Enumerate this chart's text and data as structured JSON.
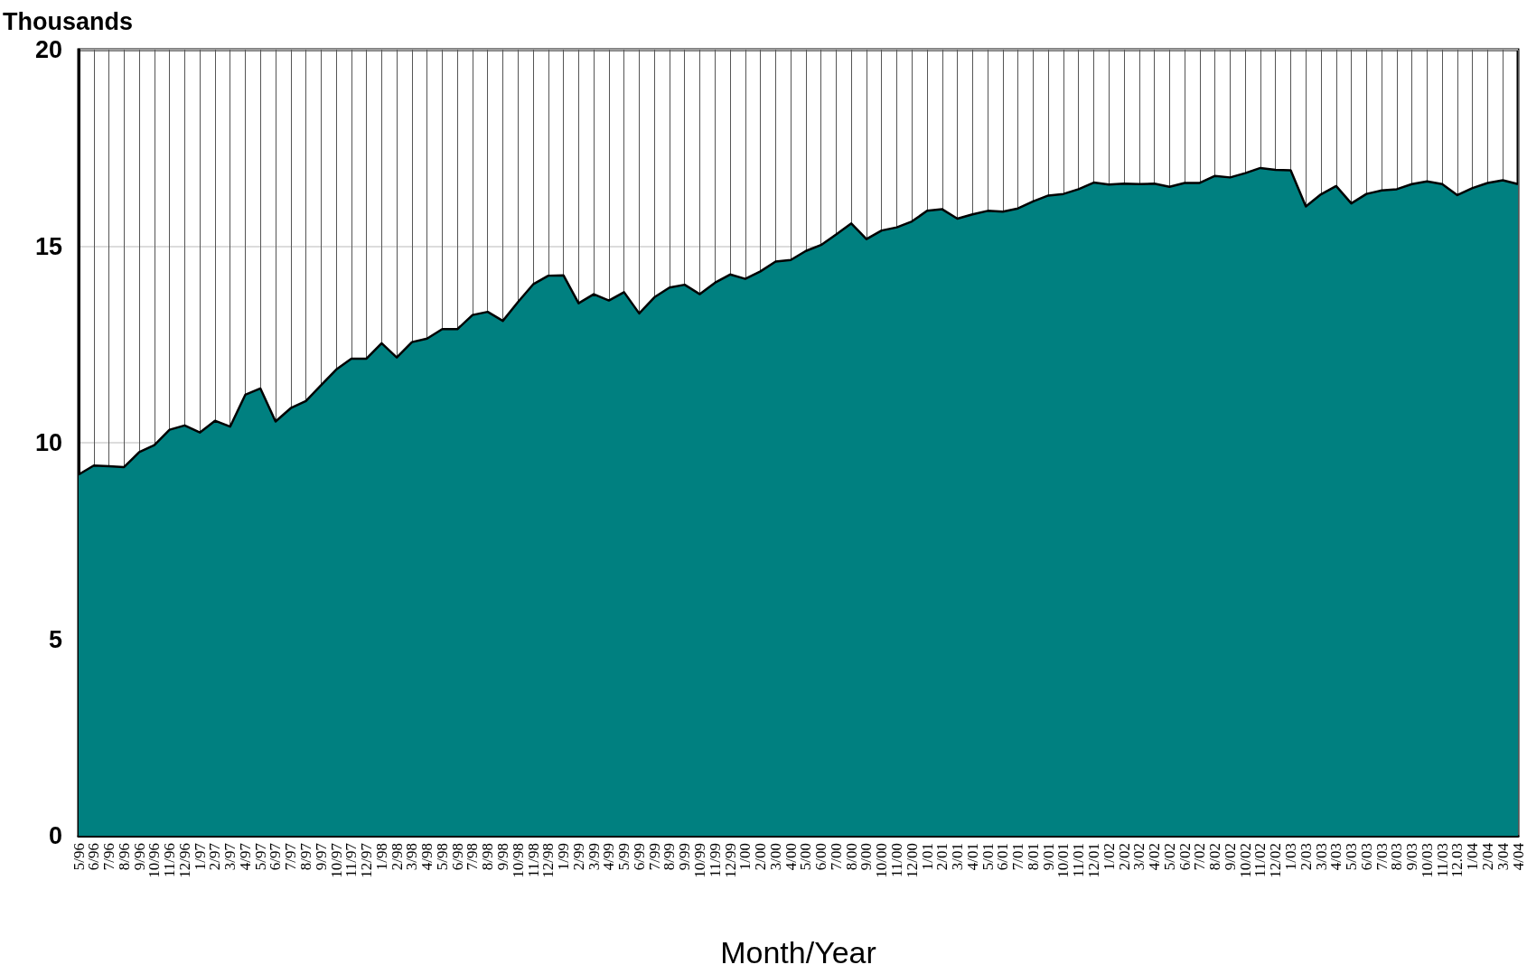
{
  "chart_data": {
    "type": "area",
    "ylabel": "Thousands",
    "xlabel": "Month/Year",
    "categories": [
      "5/96",
      "6/96",
      "7/96",
      "8/96",
      "9/96",
      "10/96",
      "11/96",
      "12/96",
      "1/97",
      "2/97",
      "3/97",
      "4/97",
      "5/97",
      "6/97",
      "7/97",
      "8/97",
      "9/97",
      "10/97",
      "11/97",
      "12/97",
      "1/98",
      "2/98",
      "3/98",
      "4/98",
      "5/98",
      "6/98",
      "7/98",
      "8/98",
      "9/98",
      "10/98",
      "11/98",
      "12/98",
      "1/99",
      "2/99",
      "3/99",
      "4/99",
      "5/99",
      "6/99",
      "7/99",
      "8/99",
      "9/99",
      "10/99",
      "11/99",
      "12/99",
      "1/00",
      "2/00",
      "3/00",
      "4/00",
      "5/00",
      "6/00",
      "7/00",
      "8/00",
      "9/00",
      "10/00",
      "11/00",
      "12/00",
      "1/01",
      "2/01",
      "3/01",
      "4/01",
      "5/01",
      "6/01",
      "7/01",
      "8/01",
      "9/01",
      "10/01",
      "11/01",
      "12/01",
      "1/02",
      "2/02",
      "3/02",
      "4/02",
      "5/02",
      "6/02",
      "7/02",
      "8/02",
      "9/02",
      "10/02",
      "11/02",
      "12/02",
      "1/03",
      "2/03",
      "3/03",
      "4/03",
      "5/03",
      "6/03",
      "7/03",
      "8/03",
      "9/03",
      "10/03",
      "11/03",
      "12.03",
      "1/04",
      "2/04",
      "3/04",
      "4/04"
    ],
    "series": [
      {
        "color": "#008080",
        "values": [
          9.19,
          9.42,
          9.4,
          9.38,
          9.76,
          9.94,
          10.33,
          10.44,
          10.26,
          10.56,
          10.41,
          11.22,
          11.38,
          10.54,
          10.88,
          11.06,
          11.46,
          11.86,
          12.14,
          12.14,
          12.53,
          12.17,
          12.56,
          12.65,
          12.89,
          12.89,
          13.25,
          13.33,
          13.1,
          13.58,
          14.03,
          14.25,
          14.26,
          13.55,
          13.78,
          13.62,
          13.83,
          13.29,
          13.7,
          13.95,
          14.02,
          13.78,
          14.07,
          14.28,
          14.17,
          14.36,
          14.61,
          14.65,
          14.88,
          15.03,
          15.3,
          15.58,
          15.18,
          15.4,
          15.48,
          15.63,
          15.9,
          15.94,
          15.7,
          15.81,
          15.9,
          15.88,
          15.96,
          16.14,
          16.29,
          16.33,
          16.45,
          16.62,
          16.57,
          16.59,
          16.58,
          16.59,
          16.51,
          16.61,
          16.61,
          16.79,
          16.75,
          16.86,
          16.99,
          16.94,
          16.93,
          16.01,
          16.32,
          16.53,
          16.09,
          16.33,
          16.42,
          16.45,
          16.58,
          16.65,
          16.58,
          16.3,
          16.48,
          16.61,
          16.68,
          16.58
        ]
      }
    ],
    "ylim": [
      0,
      20
    ],
    "yticks": [
      0,
      5,
      10,
      15,
      20
    ],
    "grid": true,
    "line_style": "solid",
    "marker": "none"
  }
}
